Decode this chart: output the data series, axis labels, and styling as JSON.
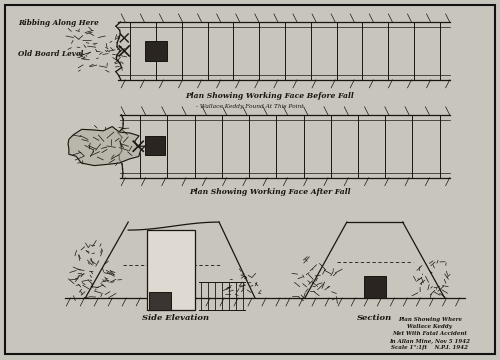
{
  "bg_color": "#c8c5bc",
  "paper_color": "#d4d0c8",
  "line_color": "#1a1510",
  "title_text": "Plan Showing Where\nWallace Keddy\nMet With Fatal Accident\nIn Allan Mine, Nov 5 1942\nScale 1\":1ft    N.P.I. 1942",
  "label_ribbing": "Ribbing Along Here",
  "label_oldboard": "Old Board Level",
  "label_plan_before": "Plan Showing Working Face Before Fall",
  "label_before_sub": "Wallace Keddy Found At This Point",
  "label_plan_after": "Plan Showing Working Face After Fall",
  "label_side": "Side Elevation",
  "label_section": "Section",
  "outer_border": "#111111"
}
